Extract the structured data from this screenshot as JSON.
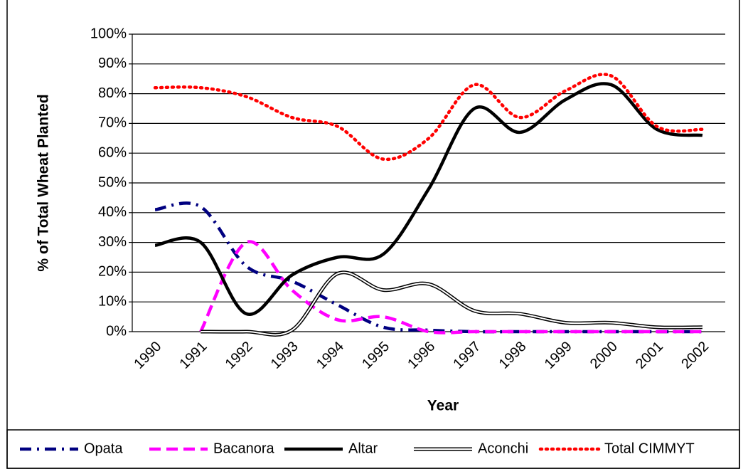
{
  "chart_data": {
    "type": "line",
    "y_label": "% of Total  Wheat Planted",
    "x_label": "Year",
    "categories": [
      "1990",
      "1991",
      "1992",
      "1993",
      "1994",
      "1995",
      "1996",
      "1997",
      "1998",
      "1999",
      "2000",
      "2001",
      "2002"
    ],
    "ylim": [
      0,
      100
    ],
    "yticks": [
      {
        "value": 0,
        "label": "0%"
      },
      {
        "value": 10,
        "label": "10%"
      },
      {
        "value": 20,
        "label": "20%"
      },
      {
        "value": 30,
        "label": "30%"
      },
      {
        "value": 40,
        "label": "40%"
      },
      {
        "value": 50,
        "label": "50%"
      },
      {
        "value": 60,
        "label": "60%"
      },
      {
        "value": 70,
        "label": "70%"
      },
      {
        "value": 80,
        "label": "80%"
      },
      {
        "value": 90,
        "label": "90%"
      },
      {
        "value": 100,
        "label": "100%"
      }
    ],
    "grid": true,
    "legend": "bottom",
    "series": [
      {
        "name": "Opata",
        "color": "#000080",
        "style": "dashdot",
        "values": [
          41,
          42,
          22,
          17,
          9,
          1.5,
          0.5,
          0,
          0,
          0,
          0,
          0,
          0
        ]
      },
      {
        "name": "Bacanora",
        "color": "#ff00ff",
        "style": "dashed",
        "values": [
          null,
          0,
          30,
          14,
          4,
          5,
          0,
          0,
          0,
          0,
          0,
          0,
          0
        ]
      },
      {
        "name": "Altar",
        "color": "#000000",
        "style": "solid",
        "values": [
          29,
          30,
          6,
          19,
          25,
          26,
          48,
          75,
          67,
          78,
          83,
          68,
          66
        ]
      },
      {
        "name": "Aconchi",
        "color": "#000000",
        "style": "double",
        "values": [
          null,
          0,
          0,
          0.5,
          19.5,
          14,
          16,
          7,
          6,
          3,
          3,
          1.5,
          1.5
        ]
      },
      {
        "name": "Total CIMMYT",
        "color": "#ff0000",
        "style": "dotted",
        "values": [
          82,
          82,
          79,
          72,
          69,
          58,
          65,
          83,
          72,
          81,
          86,
          69,
          68
        ]
      }
    ]
  }
}
